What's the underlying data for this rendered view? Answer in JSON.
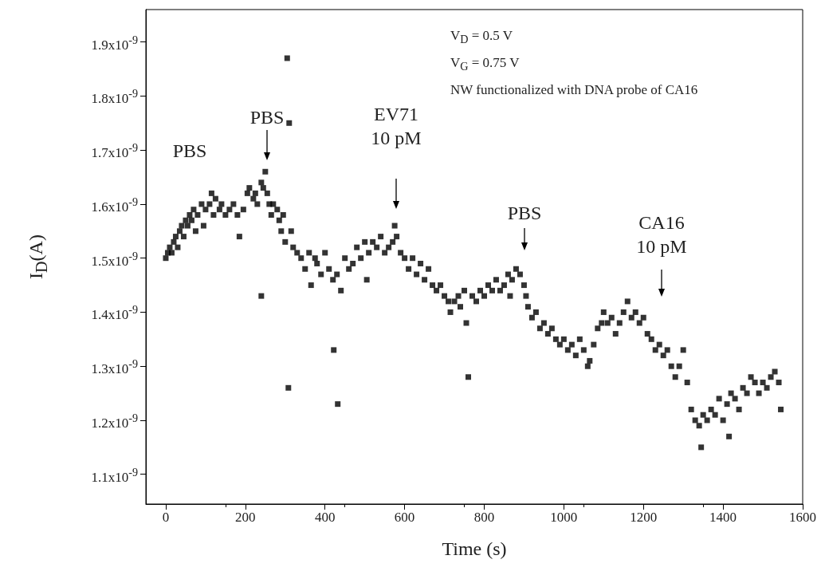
{
  "chart_data": {
    "type": "scatter",
    "xlabel": "Time (s)",
    "ylabel": "I$_{D}$(A)",
    "marker": "square",
    "grid": false,
    "xlim": [
      -50,
      1600
    ],
    "xticks": [
      0,
      200,
      400,
      600,
      800,
      1000,
      1200,
      1400,
      1600
    ],
    "ylim": [
      1.045e-09,
      1.96e-09
    ],
    "yticks": [
      {
        "value": 1.1e-09,
        "label": "1.1x10$^{-9}$"
      },
      {
        "value": 1.2e-09,
        "label": "1.2x10$^{-9}$"
      },
      {
        "value": 1.3e-09,
        "label": "1.3x10$^{-9}$"
      },
      {
        "value": 1.4e-09,
        "label": "1.4x10$^{-9}$"
      },
      {
        "value": 1.5e-09,
        "label": "1.5x10$^{-9}$"
      },
      {
        "value": 1.6e-09,
        "label": "1.6x10$^{-9}$"
      },
      {
        "value": 1.7e-09,
        "label": "1.7x10$^{-9}$"
      },
      {
        "value": 1.8e-09,
        "label": "1.8x10$^{-9}$"
      },
      {
        "value": 1.9e-09,
        "label": "1.9x10$^{-9}$"
      }
    ],
    "annotations": [
      "V$_{D}$ = 0.5 V",
      "V$_{G}$ = 0.75 V",
      "NW functionalized with DNA probe of CA16",
      "PBS",
      "PBS",
      "EV71\n10 pM",
      "PBS",
      "CA16\n10 pM"
    ],
    "series": [
      {
        "color": "#000000",
        "x": [
          0,
          5,
          10,
          15,
          20,
          25,
          30,
          35,
          40,
          45,
          50,
          55,
          60,
          65,
          70,
          75,
          80,
          90,
          95,
          100,
          110,
          115,
          120,
          125,
          135,
          140,
          150,
          160,
          170,
          180,
          185,
          195,
          205,
          210,
          220,
          225,
          230,
          240,
          245,
          250,
          255,
          260,
          265,
          270,
          280,
          285,
          290,
          295,
          300,
          305,
          310,
          308,
          240,
          315,
          320,
          330,
          340,
          350,
          360,
          365,
          375,
          380,
          390,
          400,
          410,
          420,
          422,
          432,
          430,
          440,
          450,
          460,
          470,
          480,
          490,
          500,
          505,
          510,
          520,
          530,
          540,
          550,
          560,
          570,
          575,
          580,
          590,
          600,
          610,
          620,
          630,
          640,
          650,
          660,
          670,
          680,
          690,
          700,
          710,
          715,
          725,
          735,
          740,
          750,
          755,
          760,
          770,
          780,
          790,
          800,
          810,
          820,
          830,
          840,
          850,
          860,
          865,
          870,
          880,
          890,
          900,
          905,
          910,
          920,
          930,
          940,
          950,
          960,
          970,
          980,
          990,
          1000,
          1010,
          1020,
          1030,
          1040,
          1050,
          1060,
          1065,
          1075,
          1085,
          1095,
          1100,
          1110,
          1120,
          1130,
          1140,
          1150,
          1160,
          1170,
          1180,
          1190,
          1200,
          1210,
          1220,
          1230,
          1240,
          1250,
          1260,
          1270,
          1280,
          1290,
          1300,
          1310,
          1320,
          1330,
          1340,
          1345,
          1350,
          1360,
          1370,
          1380,
          1390,
          1400,
          1410,
          1415,
          1420,
          1430,
          1440,
          1450,
          1460,
          1470,
          1480,
          1490,
          1500,
          1510,
          1520,
          1530,
          1540,
          1545
        ],
        "values": [
          1.5e-09,
          1.51e-09,
          1.52e-09,
          1.51e-09,
          1.53e-09,
          1.54e-09,
          1.52e-09,
          1.55e-09,
          1.56e-09,
          1.54e-09,
          1.57e-09,
          1.56e-09,
          1.58e-09,
          1.57e-09,
          1.59e-09,
          1.55e-09,
          1.58e-09,
          1.6e-09,
          1.56e-09,
          1.59e-09,
          1.6e-09,
          1.62e-09,
          1.58e-09,
          1.61e-09,
          1.59e-09,
          1.6e-09,
          1.58e-09,
          1.59e-09,
          1.6e-09,
          1.58e-09,
          1.54e-09,
          1.59e-09,
          1.62e-09,
          1.63e-09,
          1.61e-09,
          1.62e-09,
          1.6e-09,
          1.64e-09,
          1.63e-09,
          1.66e-09,
          1.62e-09,
          1.6e-09,
          1.58e-09,
          1.6e-09,
          1.59e-09,
          1.57e-09,
          1.55e-09,
          1.58e-09,
          1.53e-09,
          1.87e-09,
          1.75e-09,
          1.26e-09,
          1.43e-09,
          1.55e-09,
          1.52e-09,
          1.51e-09,
          1.5e-09,
          1.48e-09,
          1.51e-09,
          1.45e-09,
          1.5e-09,
          1.49e-09,
          1.47e-09,
          1.51e-09,
          1.48e-09,
          1.46e-09,
          1.33e-09,
          1.23e-09,
          1.47e-09,
          1.44e-09,
          1.5e-09,
          1.48e-09,
          1.49e-09,
          1.52e-09,
          1.5e-09,
          1.53e-09,
          1.46e-09,
          1.51e-09,
          1.53e-09,
          1.52e-09,
          1.54e-09,
          1.51e-09,
          1.52e-09,
          1.53e-09,
          1.56e-09,
          1.54e-09,
          1.51e-09,
          1.5e-09,
          1.48e-09,
          1.5e-09,
          1.47e-09,
          1.49e-09,
          1.46e-09,
          1.48e-09,
          1.45e-09,
          1.44e-09,
          1.45e-09,
          1.43e-09,
          1.42e-09,
          1.4e-09,
          1.42e-09,
          1.43e-09,
          1.41e-09,
          1.44e-09,
          1.38e-09,
          1.28e-09,
          1.43e-09,
          1.42e-09,
          1.44e-09,
          1.43e-09,
          1.45e-09,
          1.44e-09,
          1.46e-09,
          1.44e-09,
          1.45e-09,
          1.47e-09,
          1.43e-09,
          1.46e-09,
          1.48e-09,
          1.47e-09,
          1.45e-09,
          1.43e-09,
          1.41e-09,
          1.39e-09,
          1.4e-09,
          1.37e-09,
          1.38e-09,
          1.36e-09,
          1.37e-09,
          1.35e-09,
          1.34e-09,
          1.35e-09,
          1.33e-09,
          1.34e-09,
          1.32e-09,
          1.35e-09,
          1.33e-09,
          1.3e-09,
          1.31e-09,
          1.34e-09,
          1.37e-09,
          1.38e-09,
          1.4e-09,
          1.38e-09,
          1.39e-09,
          1.36e-09,
          1.38e-09,
          1.4e-09,
          1.42e-09,
          1.39e-09,
          1.4e-09,
          1.38e-09,
          1.39e-09,
          1.36e-09,
          1.35e-09,
          1.33e-09,
          1.34e-09,
          1.32e-09,
          1.33e-09,
          1.3e-09,
          1.28e-09,
          1.3e-09,
          1.33e-09,
          1.27e-09,
          1.22e-09,
          1.2e-09,
          1.19e-09,
          1.15e-09,
          1.21e-09,
          1.2e-09,
          1.22e-09,
          1.21e-09,
          1.24e-09,
          1.2e-09,
          1.23e-09,
          1.17e-09,
          1.25e-09,
          1.24e-09,
          1.22e-09,
          1.26e-09,
          1.25e-09,
          1.28e-09,
          1.27e-09,
          1.25e-09,
          1.27e-09,
          1.26e-09,
          1.28e-09,
          1.29e-09,
          1.27e-09,
          1.22e-09
        ]
      }
    ]
  }
}
